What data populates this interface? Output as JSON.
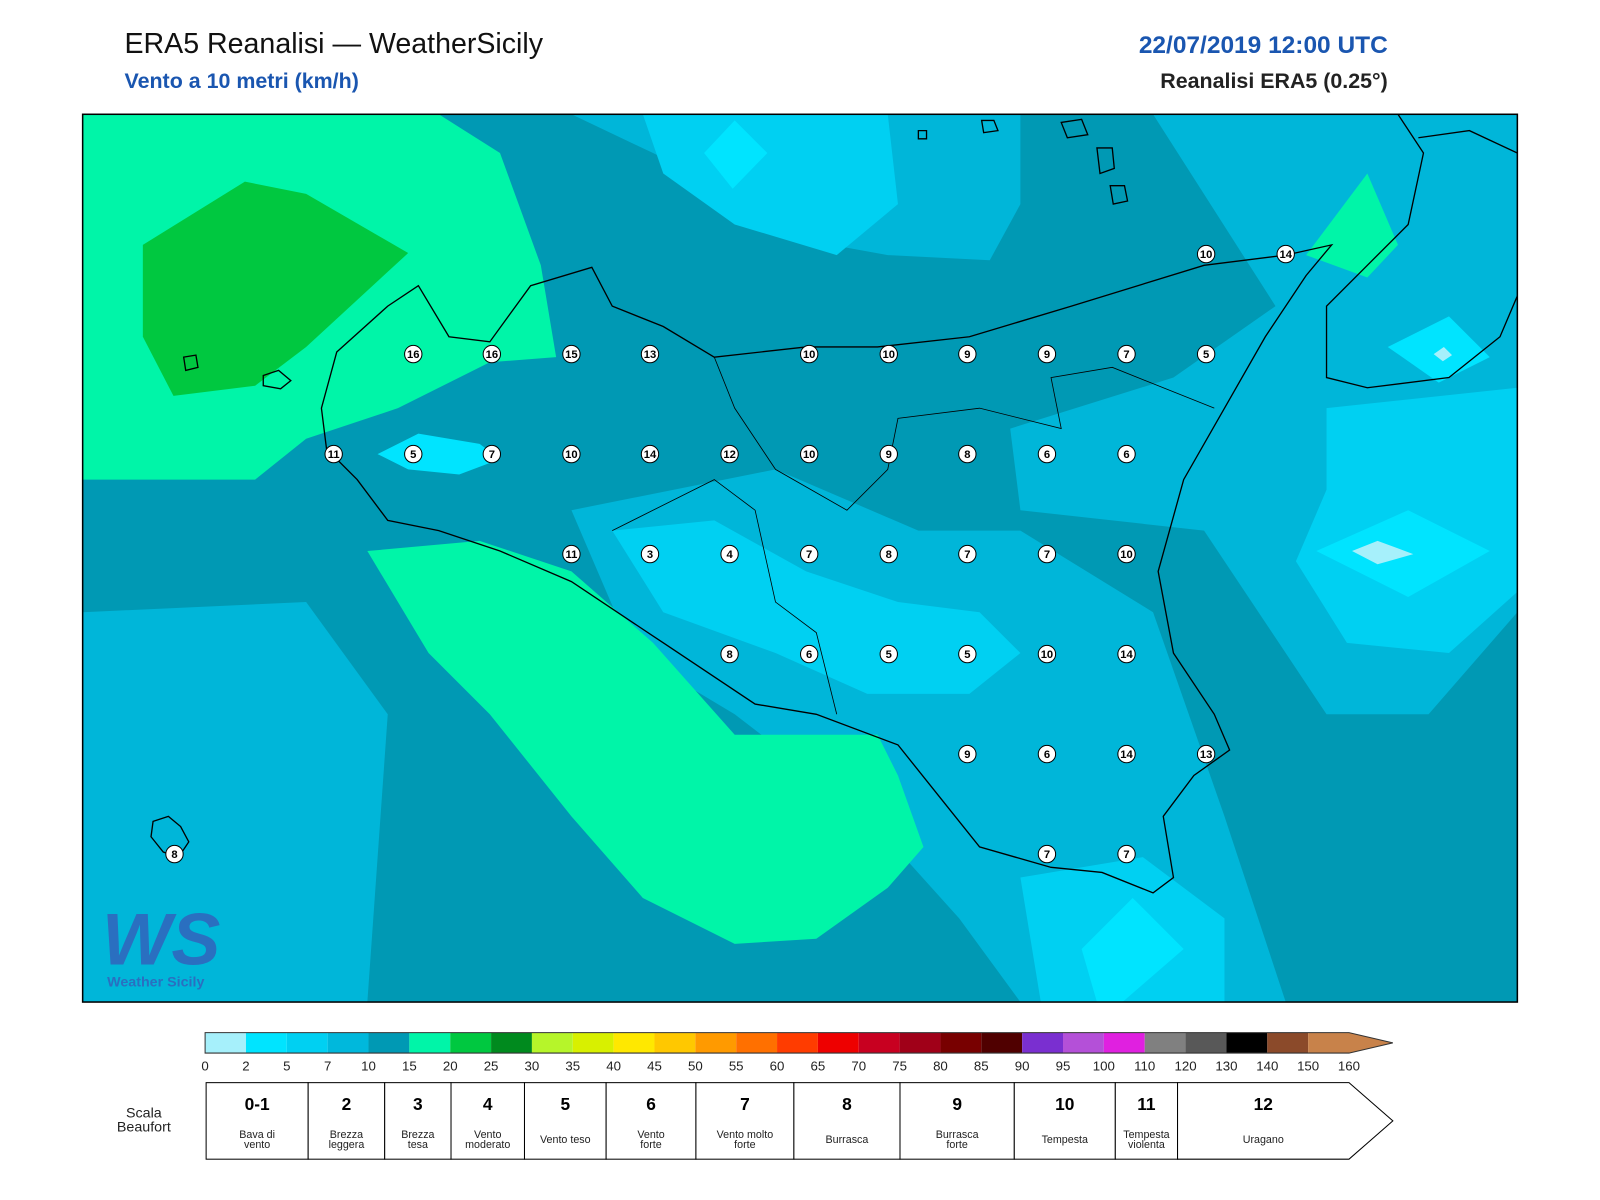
{
  "header": {
    "title": "ERA5 Reanalisi — WeatherSicily",
    "subtitle": "Vento a 10 metri (km/h)",
    "datetime": "22/07/2019 12:00 UTC",
    "source": "Reanalisi ERA5 (0.25°)"
  },
  "stations": [
    10,
    14,
    16,
    16,
    15,
    13,
    10,
    10,
    9,
    9,
    7,
    5,
    11,
    5,
    7,
    10,
    14,
    12,
    10,
    9,
    8,
    6,
    6,
    11,
    3,
    4,
    7,
    8,
    7,
    7,
    10,
    8,
    6,
    5,
    5,
    10,
    14,
    9,
    6,
    14,
    13,
    8,
    7,
    7
  ],
  "colorbar": {
    "colors": [
      "#a6f0fb",
      "#00e4ff",
      "#00d0f2",
      "#00b8dc",
      "#0099b4",
      "#00f5a8",
      "#00c840",
      "#008a1e",
      "#b6f52a",
      "#d8f000",
      "#ffe800",
      "#ffc800",
      "#ff9a00",
      "#ff7000",
      "#ff3c00",
      "#ee0000",
      "#c80020",
      "#a00018",
      "#780000",
      "#500000",
      "#7a2fd0",
      "#b450d8",
      "#e020e0",
      "#808080",
      "#585858",
      "#000000",
      "#8b4a2a",
      "#c8824a"
    ],
    "ticks": [
      0,
      2,
      5,
      7,
      10,
      15,
      20,
      25,
      30,
      35,
      40,
      45,
      50,
      55,
      60,
      65,
      70,
      75,
      80,
      85,
      90,
      95,
      100,
      110,
      120,
      130,
      140,
      150,
      160
    ]
  },
  "beaufort": {
    "title_lines": [
      "Scala",
      "Beaufort"
    ],
    "levels": [
      {
        "force": "0-1",
        "label_lines": [
          "Bava di",
          "vento"
        ]
      },
      {
        "force": "2",
        "label_lines": [
          "Brezza",
          "leggera"
        ]
      },
      {
        "force": "3",
        "label_lines": [
          "Brezza",
          "tesa"
        ]
      },
      {
        "force": "4",
        "label_lines": [
          "Vento",
          "moderato"
        ]
      },
      {
        "force": "5",
        "label_lines": [
          "Vento teso"
        ]
      },
      {
        "force": "6",
        "label_lines": [
          "Vento",
          "forte"
        ]
      },
      {
        "force": "7",
        "label_lines": [
          "Vento molto",
          "forte"
        ]
      },
      {
        "force": "8",
        "label_lines": [
          "Burrasca"
        ]
      },
      {
        "force": "9",
        "label_lines": [
          "Burrasca",
          "forte"
        ]
      },
      {
        "force": "10",
        "label_lines": [
          "Tempesta"
        ]
      },
      {
        "force": "11",
        "label_lines": [
          "Tempesta",
          "violenta"
        ]
      },
      {
        "force": "12",
        "label_lines": [
          "Uragano"
        ]
      }
    ]
  },
  "logo": {
    "mark": "WS",
    "name": "Weather Sicily"
  }
}
